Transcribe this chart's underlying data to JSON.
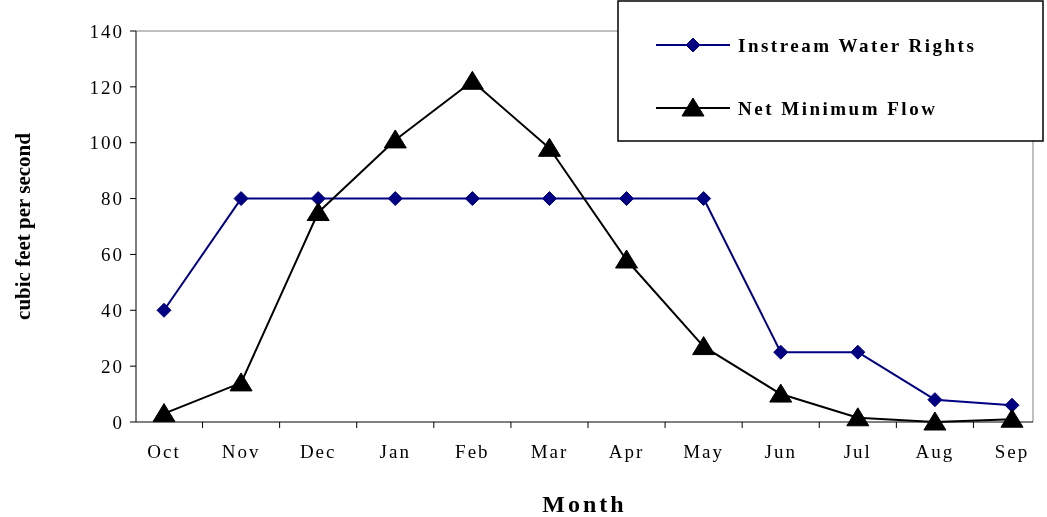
{
  "chart_data": {
    "type": "line",
    "xlabel": "Month",
    "ylabel": "cubic feet per second",
    "categories": [
      "Oct",
      "Nov",
      "Dec",
      "Jan",
      "Feb",
      "Mar",
      "Apr",
      "May",
      "Jun",
      "Jul",
      "Aug",
      "Sep"
    ],
    "series": [
      {
        "name": "Instream Water Rights",
        "color": "#000080",
        "marker": "diamond",
        "values": [
          40,
          80,
          80,
          80,
          80,
          80,
          80,
          80,
          25,
          25,
          8,
          6
        ]
      },
      {
        "name": "Net Minimum Flow",
        "color": "#000000",
        "marker": "triangle",
        "values": [
          3,
          14,
          75,
          101,
          122,
          98,
          58,
          27,
          10,
          1.5,
          0,
          1
        ]
      }
    ],
    "ylim": [
      0,
      140
    ],
    "yticks": [
      0,
      20,
      40,
      60,
      80,
      100,
      120,
      140
    ],
    "grid": false,
    "legend": "top right",
    "line_style": "solid"
  }
}
